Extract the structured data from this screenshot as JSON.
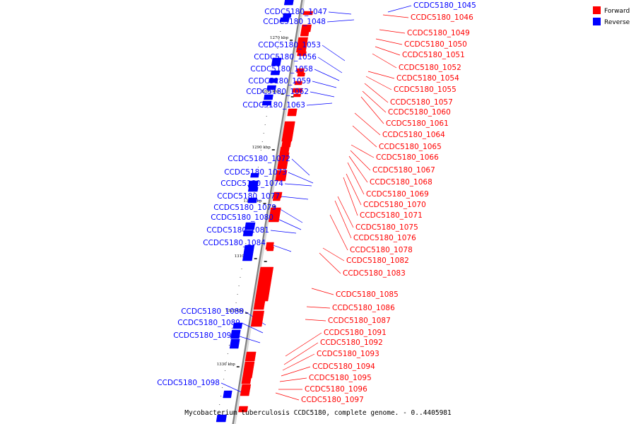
{
  "caption": "Mycobacterium tuberculosis CCDC5180, complete genome. - 0..4405981",
  "legend": {
    "forward_label": "Forward",
    "reverse_label": "Reverse",
    "forward_color": "#ff0000",
    "reverse_color": "#0000ff"
  },
  "ticks": [
    {
      "label": "1270 kbp",
      "kbp": 1270
    },
    {
      "label": "1280 kbp",
      "kbp": 1280
    },
    {
      "label": "1290 kbp",
      "kbp": 1290
    },
    {
      "label": "1300 kbp",
      "kbp": 1300
    },
    {
      "label": "1310 kbp",
      "kbp": 1310
    },
    {
      "label": "1320 kbp",
      "kbp": 1320
    },
    {
      "label": "1330 kbp",
      "kbp": 1330
    }
  ],
  "reverse_genes": [
    "CCDC5180_1045",
    "CCDC5180_1047",
    "CCDC5180_1048",
    "CCDC5180_1053",
    "CCDC5180_1056",
    "CCDC5180_1058",
    "CCDC5180_1059",
    "CCDC5180_1062",
    "CCDC5180_1063",
    "CCDC5180_1072",
    "CCDC5180_1073",
    "CCDC5180_1074",
    "CCDC5180_1077",
    "CCDC5180_1079",
    "CCDC5180_1080",
    "CCDC5180_1081",
    "CCDC5180_1084",
    "CCDC5180_1088",
    "CCDC5180_1089",
    "CCDC5180_1090",
    "CCDC5180_1098"
  ],
  "forward_genes": [
    "CCDC5180_1046",
    "CCDC5180_1049",
    "CCDC5180_1050",
    "CCDC5180_1051",
    "CCDC5180_1052",
    "CCDC5180_1054",
    "CCDC5180_1055",
    "CCDC5180_1057",
    "CCDC5180_1060",
    "CCDC5180_1061",
    "CCDC5180_1064",
    "CCDC5180_1065",
    "CCDC5180_1066",
    "CCDC5180_1067",
    "CCDC5180_1068",
    "CCDC5180_1069",
    "CCDC5180_1070",
    "CCDC5180_1071",
    "CCDC5180_1075",
    "CCDC5180_1076",
    "CCDC5180_1078",
    "CCDC5180_1082",
    "CCDC5180_1083",
    "CCDC5180_1085",
    "CCDC5180_1086",
    "CCDC5180_1087",
    "CCDC5180_1091",
    "CCDC5180_1092",
    "CCDC5180_1093",
    "CCDC5180_1094",
    "CCDC5180_1095",
    "CCDC5180_1096",
    "CCDC5180_1097"
  ]
}
